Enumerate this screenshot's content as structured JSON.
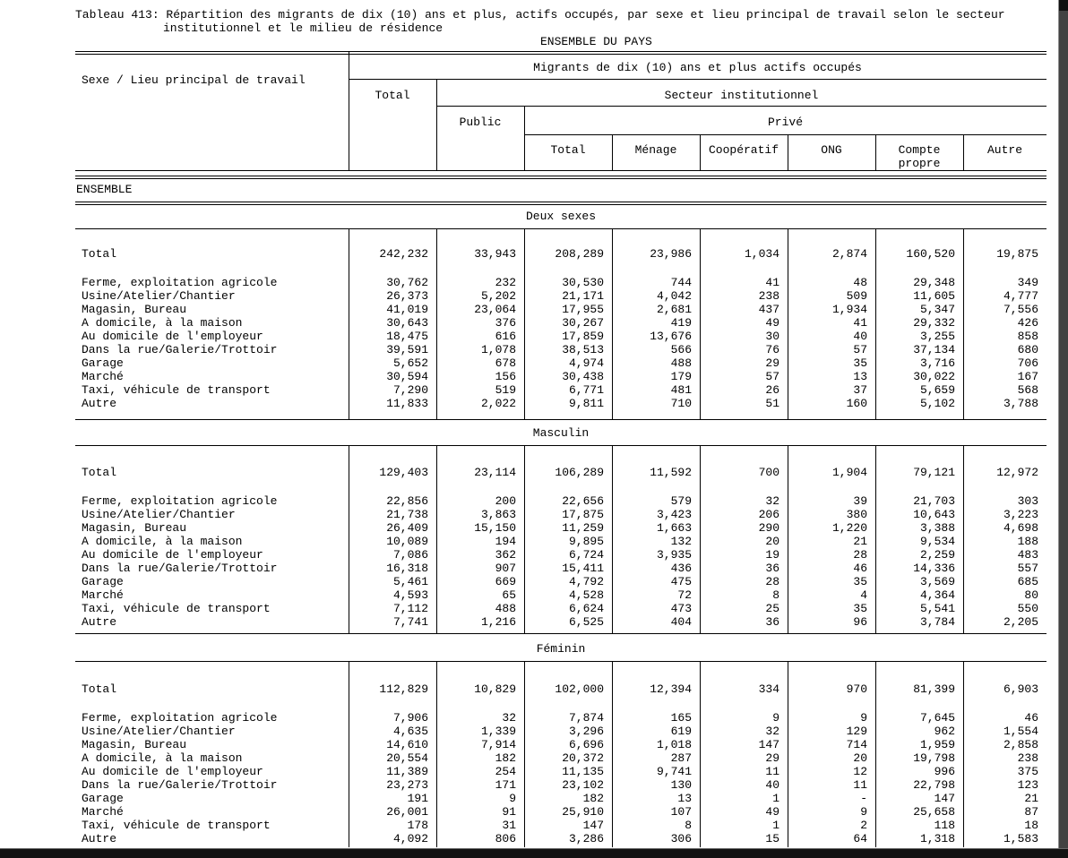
{
  "page": {
    "title_line1": "Tableau 413: Répartition des migrants de dix (10) ans et plus, actifs occupés, par sexe et lieu principal de travail selon le secteur",
    "title_line2": "institutionnel et le milieu de résidence",
    "region_title": "ENSEMBLE DU PAYS",
    "group_label": "ENSEMBLE"
  },
  "colors": {
    "ink": "#000000",
    "paper": "#ffffff",
    "scan_edge_dark": "#121212",
    "scan_edge_gray": "#424242"
  },
  "table": {
    "stub_header": "Sexe / Lieu principal de travail",
    "span_header": "Migrants de dix (10) ans et plus actifs occupés",
    "total_header": "Total",
    "sector_header": "Secteur institutionnel",
    "public_header": "Public",
    "prive_header": "Privé",
    "prive_subcols": [
      "Total",
      "Ménage",
      "Coopératif",
      "ONG",
      "Compte propre",
      "Autre"
    ],
    "sections": [
      {
        "label": "Deux sexes",
        "rows": [
          {
            "label": "Total",
            "values": [
              "242,232",
              "33,943",
              "208,289",
              "23,986",
              "1,034",
              "2,874",
              "160,520",
              "19,875"
            ]
          },
          {
            "label": "Ferme, exploitation agricole",
            "values": [
              "30,762",
              "232",
              "30,530",
              "744",
              "41",
              "48",
              "29,348",
              "349"
            ]
          },
          {
            "label": "Usine/Atelier/Chantier",
            "values": [
              "26,373",
              "5,202",
              "21,171",
              "4,042",
              "238",
              "509",
              "11,605",
              "4,777"
            ]
          },
          {
            "label": "Magasin, Bureau",
            "values": [
              "41,019",
              "23,064",
              "17,955",
              "2,681",
              "437",
              "1,934",
              "5,347",
              "7,556"
            ]
          },
          {
            "label": "A domicile, à la maison",
            "values": [
              "30,643",
              "376",
              "30,267",
              "419",
              "49",
              "41",
              "29,332",
              "426"
            ]
          },
          {
            "label": "Au domicile de l'employeur",
            "values": [
              "18,475",
              "616",
              "17,859",
              "13,676",
              "30",
              "40",
              "3,255",
              "858"
            ]
          },
          {
            "label": "Dans la rue/Galerie/Trottoir",
            "values": [
              "39,591",
              "1,078",
              "38,513",
              "566",
              "76",
              "57",
              "37,134",
              "680"
            ]
          },
          {
            "label": "Garage",
            "values": [
              "5,652",
              "678",
              "4,974",
              "488",
              "29",
              "35",
              "3,716",
              "706"
            ]
          },
          {
            "label": "Marché",
            "values": [
              "30,594",
              "156",
              "30,438",
              "179",
              "57",
              "13",
              "30,022",
              "167"
            ]
          },
          {
            "label": "Taxi, véhicule de transport",
            "values": [
              "7,290",
              "519",
              "6,771",
              "481",
              "26",
              "37",
              "5,659",
              "568"
            ]
          },
          {
            "label": "Autre",
            "values": [
              "11,833",
              "2,022",
              "9,811",
              "710",
              "51",
              "160",
              "5,102",
              "3,788"
            ]
          }
        ]
      },
      {
        "label": "Masculin",
        "rows": [
          {
            "label": "Total",
            "values": [
              "129,403",
              "23,114",
              "106,289",
              "11,592",
              "700",
              "1,904",
              "79,121",
              "12,972"
            ]
          },
          {
            "label": "Ferme, exploitation agricole",
            "values": [
              "22,856",
              "200",
              "22,656",
              "579",
              "32",
              "39",
              "21,703",
              "303"
            ]
          },
          {
            "label": "Usine/Atelier/Chantier",
            "values": [
              "21,738",
              "3,863",
              "17,875",
              "3,423",
              "206",
              "380",
              "10,643",
              "3,223"
            ]
          },
          {
            "label": "Magasin, Bureau",
            "values": [
              "26,409",
              "15,150",
              "11,259",
              "1,663",
              "290",
              "1,220",
              "3,388",
              "4,698"
            ]
          },
          {
            "label": "A domicile, à la maison",
            "values": [
              "10,089",
              "194",
              "9,895",
              "132",
              "20",
              "21",
              "9,534",
              "188"
            ]
          },
          {
            "label": "Au domicile de l'employeur",
            "values": [
              "7,086",
              "362",
              "6,724",
              "3,935",
              "19",
              "28",
              "2,259",
              "483"
            ]
          },
          {
            "label": "Dans la rue/Galerie/Trottoir",
            "values": [
              "16,318",
              "907",
              "15,411",
              "436",
              "36",
              "46",
              "14,336",
              "557"
            ]
          },
          {
            "label": "Garage",
            "values": [
              "5,461",
              "669",
              "4,792",
              "475",
              "28",
              "35",
              "3,569",
              "685"
            ]
          },
          {
            "label": "Marché",
            "values": [
              "4,593",
              "65",
              "4,528",
              "72",
              "8",
              "4",
              "4,364",
              "80"
            ]
          },
          {
            "label": "Taxi, véhicule de transport",
            "values": [
              "7,112",
              "488",
              "6,624",
              "473",
              "25",
              "35",
              "5,541",
              "550"
            ]
          },
          {
            "label": "Autre",
            "values": [
              "7,741",
              "1,216",
              "6,525",
              "404",
              "36",
              "96",
              "3,784",
              "2,205"
            ]
          }
        ]
      },
      {
        "label": "Féminin",
        "rows": [
          {
            "label": "Total",
            "values": [
              "112,829",
              "10,829",
              "102,000",
              "12,394",
              "334",
              "970",
              "81,399",
              "6,903"
            ]
          },
          {
            "label": "Ferme, exploitation agricole",
            "values": [
              "7,906",
              "32",
              "7,874",
              "165",
              "9",
              "9",
              "7,645",
              "46"
            ]
          },
          {
            "label": "Usine/Atelier/Chantier",
            "values": [
              "4,635",
              "1,339",
              "3,296",
              "619",
              "32",
              "129",
              "962",
              "1,554"
            ]
          },
          {
            "label": "Magasin, Bureau",
            "values": [
              "14,610",
              "7,914",
              "6,696",
              "1,018",
              "147",
              "714",
              "1,959",
              "2,858"
            ]
          },
          {
            "label": "A domicile, à la maison",
            "values": [
              "20,554",
              "182",
              "20,372",
              "287",
              "29",
              "20",
              "19,798",
              "238"
            ]
          },
          {
            "label": "Au domicile de l'employeur",
            "values": [
              "11,389",
              "254",
              "11,135",
              "9,741",
              "11",
              "12",
              "996",
              "375"
            ]
          },
          {
            "label": "Dans la rue/Galerie/Trottoir",
            "values": [
              "23,273",
              "171",
              "23,102",
              "130",
              "40",
              "11",
              "22,798",
              "123"
            ]
          },
          {
            "label": "Garage",
            "values": [
              "191",
              "9",
              "182",
              "13",
              "1",
              "-",
              "147",
              "21"
            ]
          },
          {
            "label": "Marché",
            "values": [
              "26,001",
              "91",
              "25,910",
              "107",
              "49",
              "9",
              "25,658",
              "87"
            ]
          },
          {
            "label": "Taxi, véhicule de transport",
            "values": [
              "178",
              "31",
              "147",
              "8",
              "1",
              "2",
              "118",
              "18"
            ]
          },
          {
            "label": "Autre",
            "values": [
              "4,092",
              "806",
              "3,286",
              "306",
              "15",
              "64",
              "1,318",
              "1,583"
            ]
          }
        ]
      }
    ]
  }
}
